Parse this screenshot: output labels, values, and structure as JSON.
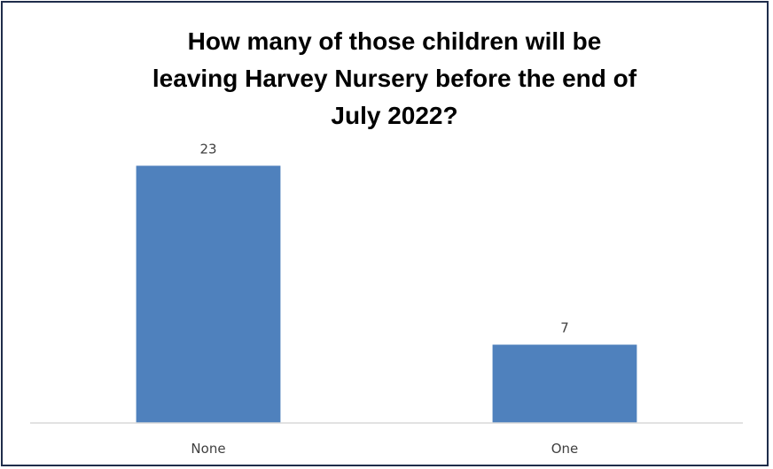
{
  "chart_data": {
    "type": "bar",
    "title_lines": [
      "How many of those children will be",
      "leaving Harvey Nursery before the end of",
      "July 2022?"
    ],
    "categories": [
      "None",
      "One"
    ],
    "values": [
      23,
      7
    ],
    "data_labels": [
      "23",
      "7"
    ],
    "ylim": [
      0,
      25
    ],
    "grid": false,
    "legend": "none",
    "colors": {
      "bar": "#4f81bd",
      "frame": "#1f2d4b",
      "axis": "#d9d9d9",
      "label": "#404040"
    }
  }
}
